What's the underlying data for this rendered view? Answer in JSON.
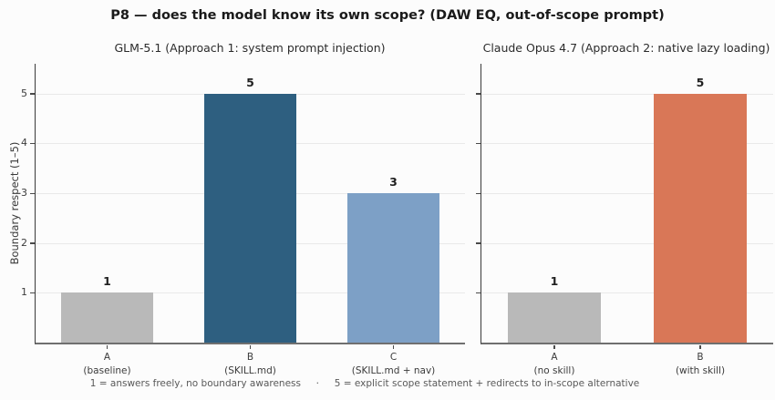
{
  "title": "P8 — does the model know its own scope? (DAW EQ, out-of-scope prompt)",
  "ylabel": "Boundary respect (1–5)",
  "footer": "1 = answers freely, no boundary awareness     ·     5 = explicit scope statement + redirects to in-scope alternative",
  "colors": {
    "baseline_gray": "#b9b9b9",
    "glm_skill_teal": "#2e5f80",
    "glm_skill_nav_blue": "#7da0c6",
    "claude_orange": "#d97757",
    "gridline": "#e9e9e9",
    "background": "#fcfcfc"
  },
  "chart_data": [
    {
      "type": "bar",
      "title": "GLM-5.1 (Approach 1: system prompt injection)",
      "categories": [
        "A (baseline)",
        "B (SKILL.md)",
        "C (SKILL.md + nav)"
      ],
      "category_lines": [
        [
          "A",
          "(baseline)"
        ],
        [
          "B",
          "(SKILL.md)"
        ],
        [
          "C",
          "(SKILL.md + nav)"
        ]
      ],
      "values": [
        1,
        5,
        3
      ],
      "bar_colors": [
        "#b9b9b9",
        "#2e5f80",
        "#7da0c6"
      ],
      "ylabel": "Boundary respect (1–5)",
      "ylim": [
        0,
        5.6
      ],
      "yticks": [
        1,
        2,
        3,
        4,
        5
      ],
      "grid": true
    },
    {
      "type": "bar",
      "title": "Claude Opus 4.7 (Approach 2: native lazy loading)",
      "categories": [
        "A (no skill)",
        "B (with skill)"
      ],
      "category_lines": [
        [
          "A",
          "(no skill)"
        ],
        [
          "B",
          "(with skill)"
        ]
      ],
      "values": [
        1,
        5
      ],
      "bar_colors": [
        "#b9b9b9",
        "#d97757"
      ],
      "ylim": [
        0,
        5.6
      ],
      "yticks": [
        1,
        2,
        3,
        4,
        5
      ],
      "grid": true
    }
  ]
}
